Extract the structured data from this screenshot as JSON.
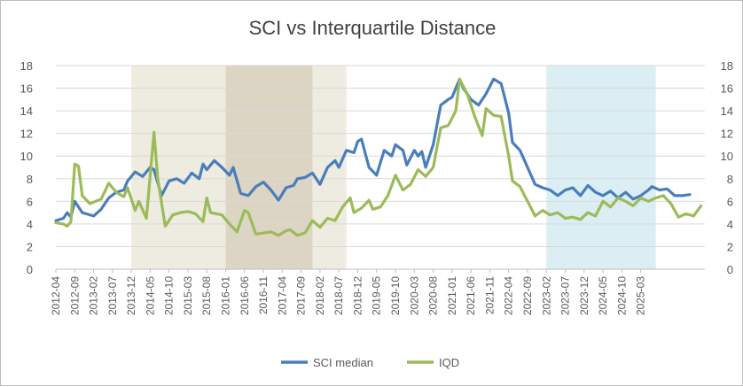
{
  "chart_data": {
    "type": "line",
    "title": "SCI vs Interquartile Distance",
    "xlabel": "",
    "ylabel": "",
    "ylim": [
      0,
      18
    ],
    "y_ticks": [
      "0",
      "2",
      "4",
      "6",
      "8",
      "10",
      "12",
      "14",
      "16",
      "18"
    ],
    "y2_ticks": [
      "0",
      "2",
      "4",
      "6",
      "8",
      "10",
      "12",
      "14",
      "16",
      "18"
    ],
    "x_tick_labels": [
      "2012-04",
      "2012-09",
      "2013-02",
      "2013-07",
      "2013-12",
      "2014-05",
      "2014-10",
      "2015-03",
      "2015-08",
      "2016-01",
      "2016-06",
      "2016-11",
      "2017-04",
      "2017-09",
      "2018-02",
      "2018-07",
      "2018-12",
      "2019-05",
      "2019-10",
      "2020-03",
      "2020-08",
      "2021-01",
      "2021-06",
      "2021-11",
      "2022-04",
      "2022-09",
      "2023-02",
      "2023-07",
      "2023-12",
      "2024-05",
      "2024-10",
      "2025-03"
    ],
    "shaded_periods": [
      {
        "start": "2013-12",
        "end": "2018-09",
        "color": "#eeebe0"
      },
      {
        "start": "2016-01",
        "end": "2017-12",
        "color": "#ddd5c4"
      },
      {
        "start": "2023-02",
        "end": "2025-07",
        "color": "#daeef3"
      }
    ],
    "grid": true,
    "legend_position": "bottom",
    "series": [
      {
        "name": "SCI median",
        "color": "#4a7ebb",
        "points": [
          [
            "2012-04",
            4.3
          ],
          [
            "2012-06",
            4.5
          ],
          [
            "2012-07",
            5.0
          ],
          [
            "2012-08",
            4.6
          ],
          [
            "2012-09",
            6.0
          ],
          [
            "2012-11",
            5.0
          ],
          [
            "2013-02",
            4.7
          ],
          [
            "2013-04",
            5.3
          ],
          [
            "2013-06",
            6.3
          ],
          [
            "2013-08",
            6.8
          ],
          [
            "2013-10",
            7.0
          ],
          [
            "2013-11",
            7.8
          ],
          [
            "2014-01",
            8.6
          ],
          [
            "2014-03",
            8.2
          ],
          [
            "2014-05",
            9.0
          ],
          [
            "2014-06",
            8.8
          ],
          [
            "2014-08",
            6.5
          ],
          [
            "2014-10",
            7.8
          ],
          [
            "2014-12",
            8.0
          ],
          [
            "2015-02",
            7.6
          ],
          [
            "2015-04",
            8.5
          ],
          [
            "2015-06",
            8.0
          ],
          [
            "2015-07",
            9.3
          ],
          [
            "2015-08",
            8.8
          ],
          [
            "2015-10",
            9.6
          ],
          [
            "2015-12",
            9.0
          ],
          [
            "2016-02",
            8.3
          ],
          [
            "2016-03",
            9.0
          ],
          [
            "2016-05",
            6.7
          ],
          [
            "2016-07",
            6.5
          ],
          [
            "2016-09",
            7.3
          ],
          [
            "2016-11",
            7.7
          ],
          [
            "2017-01",
            7.0
          ],
          [
            "2017-03",
            6.1
          ],
          [
            "2017-05",
            7.2
          ],
          [
            "2017-07",
            7.4
          ],
          [
            "2017-08",
            8.0
          ],
          [
            "2017-10",
            8.1
          ],
          [
            "2017-12",
            8.5
          ],
          [
            "2018-02",
            7.5
          ],
          [
            "2018-04",
            9.0
          ],
          [
            "2018-06",
            9.6
          ],
          [
            "2018-07",
            9.0
          ],
          [
            "2018-09",
            10.5
          ],
          [
            "2018-11",
            10.3
          ],
          [
            "2018-12",
            11.3
          ],
          [
            "2019-01",
            11.5
          ],
          [
            "2019-03",
            9.0
          ],
          [
            "2019-05",
            8.3
          ],
          [
            "2019-07",
            10.5
          ],
          [
            "2019-09",
            10.0
          ],
          [
            "2019-10",
            11.0
          ],
          [
            "2019-12",
            10.5
          ],
          [
            "2020-01",
            9.2
          ],
          [
            "2020-03",
            10.5
          ],
          [
            "2020-04",
            10.0
          ],
          [
            "2020-05",
            10.4
          ],
          [
            "2020-06",
            9.0
          ],
          [
            "2020-08",
            11.0
          ],
          [
            "2020-10",
            14.5
          ],
          [
            "2020-12",
            15.0
          ],
          [
            "2021-01",
            15.2
          ],
          [
            "2021-03",
            16.8
          ],
          [
            "2021-04",
            16.0
          ],
          [
            "2021-06",
            15.0
          ],
          [
            "2021-08",
            14.5
          ],
          [
            "2021-10",
            15.5
          ],
          [
            "2021-12",
            16.8
          ],
          [
            "2022-02",
            16.4
          ],
          [
            "2022-04",
            13.8
          ],
          [
            "2022-05",
            11.2
          ],
          [
            "2022-07",
            10.5
          ],
          [
            "2022-09",
            9.0
          ],
          [
            "2022-11",
            7.5
          ],
          [
            "2023-01",
            7.2
          ],
          [
            "2023-03",
            7.0
          ],
          [
            "2023-05",
            6.5
          ],
          [
            "2023-07",
            7.0
          ],
          [
            "2023-09",
            7.2
          ],
          [
            "2023-11",
            6.5
          ],
          [
            "2024-01",
            7.4
          ],
          [
            "2024-03",
            6.8
          ],
          [
            "2024-05",
            6.5
          ],
          [
            "2024-07",
            6.9
          ],
          [
            "2024-09",
            6.3
          ],
          [
            "2024-11",
            6.8
          ],
          [
            "2025-01",
            6.2
          ],
          [
            "2025-03",
            6.5
          ],
          [
            "2025-05",
            7.0
          ],
          [
            "2025-06",
            7.3
          ],
          [
            "2025-08",
            7.0
          ],
          [
            "2025-10",
            7.1
          ],
          [
            "2025-12",
            6.5
          ],
          [
            "2026-02",
            6.5
          ],
          [
            "2026-04",
            6.6
          ]
        ]
      },
      {
        "name": "IQD",
        "color": "#9bbb59",
        "points": [
          [
            "2012-04",
            4.1
          ],
          [
            "2012-06",
            4.0
          ],
          [
            "2012-07",
            3.8
          ],
          [
            "2012-08",
            4.2
          ],
          [
            "2012-09",
            9.3
          ],
          [
            "2012-10",
            9.1
          ],
          [
            "2012-11",
            6.5
          ],
          [
            "2013-01",
            5.8
          ],
          [
            "2013-04",
            6.2
          ],
          [
            "2013-06",
            7.6
          ],
          [
            "2013-08",
            6.8
          ],
          [
            "2013-10",
            6.4
          ],
          [
            "2013-11",
            7.2
          ],
          [
            "2014-01",
            5.2
          ],
          [
            "2014-02",
            6.0
          ],
          [
            "2014-04",
            4.5
          ],
          [
            "2014-06",
            12.1
          ],
          [
            "2014-07",
            8.0
          ],
          [
            "2014-09",
            3.8
          ],
          [
            "2014-11",
            4.8
          ],
          [
            "2015-01",
            5.0
          ],
          [
            "2015-03",
            5.1
          ],
          [
            "2015-05",
            4.9
          ],
          [
            "2015-07",
            4.2
          ],
          [
            "2015-08",
            6.3
          ],
          [
            "2015-09",
            5.0
          ],
          [
            "2015-12",
            4.8
          ],
          [
            "2016-02",
            4.0
          ],
          [
            "2016-04",
            3.3
          ],
          [
            "2016-06",
            5.2
          ],
          [
            "2016-07",
            5.0
          ],
          [
            "2016-09",
            3.1
          ],
          [
            "2016-11",
            3.2
          ],
          [
            "2017-01",
            3.3
          ],
          [
            "2017-03",
            3.0
          ],
          [
            "2017-05",
            3.4
          ],
          [
            "2017-06",
            3.5
          ],
          [
            "2017-08",
            3.0
          ],
          [
            "2017-10",
            3.2
          ],
          [
            "2017-12",
            4.3
          ],
          [
            "2018-02",
            3.7
          ],
          [
            "2018-04",
            4.5
          ],
          [
            "2018-06",
            4.3
          ],
          [
            "2018-08",
            5.5
          ],
          [
            "2018-10",
            6.3
          ],
          [
            "2018-11",
            5.0
          ],
          [
            "2019-01",
            5.4
          ],
          [
            "2019-03",
            6.1
          ],
          [
            "2019-04",
            5.3
          ],
          [
            "2019-06",
            5.5
          ],
          [
            "2019-08",
            6.5
          ],
          [
            "2019-10",
            8.3
          ],
          [
            "2019-12",
            7.0
          ],
          [
            "2020-02",
            7.5
          ],
          [
            "2020-04",
            8.8
          ],
          [
            "2020-06",
            8.2
          ],
          [
            "2020-08",
            9.0
          ],
          [
            "2020-10",
            12.5
          ],
          [
            "2020-12",
            12.7
          ],
          [
            "2021-02",
            14.0
          ],
          [
            "2021-03",
            16.8
          ],
          [
            "2021-05",
            15.5
          ],
          [
            "2021-07",
            13.5
          ],
          [
            "2021-09",
            11.8
          ],
          [
            "2021-10",
            14.2
          ],
          [
            "2021-12",
            13.6
          ],
          [
            "2022-02",
            13.5
          ],
          [
            "2022-04",
            10.0
          ],
          [
            "2022-05",
            7.8
          ],
          [
            "2022-07",
            7.3
          ],
          [
            "2022-09",
            6.0
          ],
          [
            "2022-11",
            4.7
          ],
          [
            "2023-01",
            5.2
          ],
          [
            "2023-03",
            4.8
          ],
          [
            "2023-05",
            5.0
          ],
          [
            "2023-07",
            4.5
          ],
          [
            "2023-09",
            4.6
          ],
          [
            "2023-11",
            4.4
          ],
          [
            "2024-01",
            5.0
          ],
          [
            "2024-03",
            4.7
          ],
          [
            "2024-05",
            6.0
          ],
          [
            "2024-07",
            5.5
          ],
          [
            "2024-09",
            6.3
          ],
          [
            "2024-11",
            6.0
          ],
          [
            "2025-01",
            5.6
          ],
          [
            "2025-03",
            6.3
          ],
          [
            "2025-05",
            6.0
          ],
          [
            "2025-07",
            6.3
          ],
          [
            "2025-09",
            6.5
          ],
          [
            "2025-11",
            5.8
          ],
          [
            "2026-01",
            4.6
          ],
          [
            "2026-03",
            4.9
          ],
          [
            "2026-05",
            4.7
          ],
          [
            "2026-07",
            5.6
          ]
        ]
      }
    ]
  }
}
